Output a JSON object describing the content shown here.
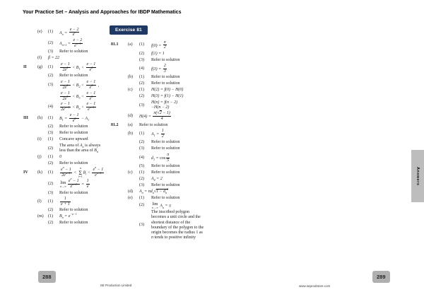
{
  "header": {
    "title": "Your Practice Set – Analysis and Approaches for IBDP Mathematics"
  },
  "badge": {
    "label": "Exercise 81",
    "background": "#1f3864"
  },
  "side_tab": {
    "label": "Answers"
  },
  "colors": {
    "badge_navy": "#1f3864",
    "page_number_gray": "#b0b0b0",
    "text": "#1a1a1a"
  },
  "left_page": {
    "page_number": "288",
    "footer": "SE Production Limited",
    "rows": [
      {
        "group": "",
        "letter": "(e)",
        "num": "(1)",
        "kind": "math",
        "content": "A_{n} = \\f{e − 2}{e^{n}}"
      },
      {
        "group": "",
        "letter": "",
        "num": "(2)",
        "kind": "math",
        "content": "A_{n+1} = \\f{e − 2}{e^{n+1}}"
      },
      {
        "group": "",
        "letter": "",
        "num": "(3)",
        "kind": "text",
        "content": "Refer to solution"
      },
      {
        "group": "",
        "letter": "(f)",
        "num": "",
        "wide": true,
        "kind": "math",
        "content": "β = 22"
      },
      {
        "group": "II",
        "letter": "(g)",
        "num": "(1)",
        "kind": "math",
        "content": "\\f{e − 1}{2e^{2}} < B_{1} < \\f{e − 1}{e^{2}}"
      },
      {
        "group": "",
        "letter": "",
        "num": "(2)",
        "kind": "text",
        "content": "Refer to solution"
      },
      {
        "group": "",
        "letter": "",
        "num": "(3)",
        "kind": "math",
        "content": "\\f{e − 1}{2e^{2}} < B_{2} < \\f{e − 1}{e^{2}} ,"
      },
      {
        "group": "",
        "letter": "",
        "num": "",
        "kind": "math",
        "content": "\\f{e − 1}{2e^{3}} < B_{3} < \\f{e − 1}{e^{3}}"
      },
      {
        "group": "",
        "letter": "",
        "num": "(4)",
        "kind": "math",
        "content": "\\f{e − 1}{2e^{n+1}} < B_{n} < \\f{e − 1}{e^{n+1}}"
      },
      {
        "group": "III",
        "letter": "(h)",
        "num": "(1)",
        "kind": "math",
        "content": "B_{1} = \\f{e − 1}{e^{2}} − A_{1}"
      },
      {
        "group": "",
        "letter": "",
        "num": "(2)",
        "kind": "text",
        "content": "Refer to solution"
      },
      {
        "group": "",
        "letter": "",
        "num": "(3)",
        "kind": "text",
        "content": "Refer to solution"
      },
      {
        "group": "",
        "letter": "(i)",
        "num": "(1)",
        "kind": "text",
        "content": "Concave upward"
      },
      {
        "group": "",
        "letter": "",
        "num": "(2)",
        "kind": "text",
        "content": "The area of \\i{A_{n}} is always less than the area of \\i{B_{n}}"
      },
      {
        "group": "",
        "letter": "(j)",
        "num": "(1)",
        "kind": "math",
        "content": "0"
      },
      {
        "group": "",
        "letter": "",
        "num": "(2)",
        "kind": "text",
        "content": "Refer to solution"
      },
      {
        "group": "IV",
        "letter": "(k)",
        "num": "(1)",
        "kind": "math",
        "content": "\\f{e^{n} − 1}{2e^{n+1}} < \\sum{i=1}{n}B_{i} < \\f{e^{n} − 1}{e^{n+1}}"
      },
      {
        "group": "",
        "letter": "",
        "num": "(2)",
        "kind": "math",
        "content": "\\lim{n→∞}\\f{e^{n} − 1}{e^{n+1}} = \\f{1}{e}"
      },
      {
        "group": "",
        "letter": "",
        "num": "(3)",
        "kind": "text",
        "content": "Refer to solution"
      },
      {
        "group": "",
        "letter": "(l)",
        "num": "(1)",
        "kind": "math",
        "content": "\\f{1}{e + 1}"
      },
      {
        "group": "",
        "letter": "",
        "num": "(2)",
        "kind": "text",
        "content": "Refer to solution"
      },
      {
        "group": "",
        "letter": "(m)",
        "num": "(1)",
        "kind": "math",
        "content": "B_{n} = e^{−n−1}"
      },
      {
        "group": "",
        "letter": "",
        "num": "(2)",
        "kind": "text",
        "content": "Refer to solution"
      }
    ]
  },
  "right_page": {
    "page_number": "289",
    "footer": "www.seprodstore.com",
    "rows": [
      {
        "group": "81.1",
        "letter": "(a)",
        "num": "(1)",
        "kind": "math",
        "content": "f(0) = \\f{π}{2}"
      },
      {
        "group": "",
        "letter": "",
        "num": "(2)",
        "kind": "math",
        "content": "f(1) = 1"
      },
      {
        "group": "",
        "letter": "",
        "num": "(3)",
        "kind": "text",
        "content": "Refer to solution"
      },
      {
        "group": "",
        "letter": "",
        "num": "(4)",
        "kind": "math",
        "content": "f(3) = \\f{2}{3}"
      },
      {
        "group": "",
        "letter": "(b)",
        "num": "(1)",
        "kind": "text",
        "content": "Refer to solution"
      },
      {
        "group": "",
        "letter": "",
        "num": "(2)",
        "kind": "text",
        "content": "Refer to solution"
      },
      {
        "group": "",
        "letter": "(c)",
        "num": "(1)",
        "kind": "math",
        "content": "H(2) = f(0) − H(0)"
      },
      {
        "group": "",
        "letter": "",
        "num": "(2)",
        "kind": "math",
        "content": "H(3) = f(1) − H(1)"
      },
      {
        "group": "",
        "letter": "",
        "num": "(3)",
        "kind": "math",
        "content": "H(n) = f(n − 2)\\br−H(n − 2)"
      },
      {
        "group": "",
        "letter": "(d)",
        "num": "",
        "wide": true,
        "kind": "math",
        "content": "H(4) = \\f{π(\\rad\\s{2} − 1)}{4}"
      },
      {
        "group": "81.2",
        "letter": "(a)",
        "num": "",
        "wide": true,
        "kind": "text",
        "content": "Refer to solution"
      },
      {
        "group": "",
        "letter": "(b)",
        "num": "(1)",
        "kind": "math",
        "content": "A_{1} = \\f{1}{2}"
      },
      {
        "group": "",
        "letter": "",
        "num": "(2)",
        "kind": "text",
        "content": "Refer to solution"
      },
      {
        "group": "",
        "letter": "",
        "num": "(3)",
        "kind": "text",
        "content": "Refer to solution"
      },
      {
        "group": "",
        "letter": "",
        "num": "(4)",
        "kind": "math",
        "content": "d_{1} = \\r{cos}\\f{π}{5}"
      },
      {
        "group": "",
        "letter": "",
        "num": "(5)",
        "kind": "text",
        "content": "Refer to solution"
      },
      {
        "group": "",
        "letter": "(c)",
        "num": "(1)",
        "kind": "text",
        "content": "Refer to solution"
      },
      {
        "group": "",
        "letter": "",
        "num": "(2)",
        "kind": "math",
        "content": "A_{4} = 2"
      },
      {
        "group": "",
        "letter": "",
        "num": "(3)",
        "kind": "text",
        "content": "Refer to solution"
      },
      {
        "group": "",
        "letter": "(d)",
        "num": "",
        "wide": true,
        "kind": "math",
        "content": "A_{n} = nd_{n}\\rad\\s{1 − d_{n}^{2}}"
      },
      {
        "group": "",
        "letter": "(e)",
        "num": "(1)",
        "kind": "text",
        "content": "Refer to solution"
      },
      {
        "group": "",
        "letter": "",
        "num": "(2)",
        "kind": "math",
        "content": "\\lim{n→∞} A_{n} = π"
      },
      {
        "group": "",
        "letter": "",
        "num": "(3)",
        "kind": "text",
        "content": "The inscribed polygon becomes a unit circle and the shortest distance of the boundary of the polygon to the origin becomes the radius 1 as \\i{n} tends to positive infinity"
      }
    ]
  }
}
